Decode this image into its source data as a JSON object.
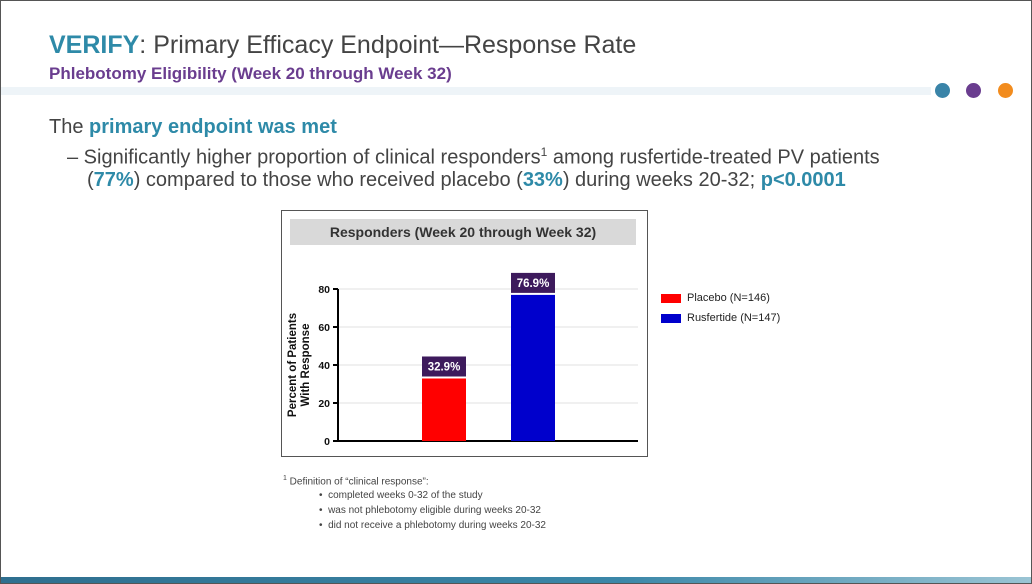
{
  "header": {
    "title_brand": "VERIFY",
    "title_rest": ": Primary Efficacy Endpoint—Response Rate",
    "subtitle": "Phlebotomy Eligibility (Week 20 through Week 32)",
    "dots": [
      "#3a84a8",
      "#6a3d8f",
      "#f28c1e"
    ]
  },
  "body": {
    "b1_pre": "The ",
    "b1_hl": "primary endpoint was met",
    "s1_a": "– Significantly higher proportion of clinical responders",
    "s1_sup": "1",
    "s1_b": " among rusfertide-treated PV patients",
    "s2_a": "(",
    "s2_hl1": "77%",
    "s2_b": ") compared to those who received placebo (",
    "s2_hl2": "33%",
    "s2_c": ") during weeks 20-32; ",
    "s2_hl3": "p<0.0001"
  },
  "chart_data": {
    "type": "bar",
    "title": "Responders (Week 20 through Week 32)",
    "ylabel_line1": "Percent of Patients",
    "ylabel_line2": "With Response",
    "xlabel": "",
    "ylim": [
      0,
      80
    ],
    "yticks": [
      0,
      20,
      40,
      60,
      80
    ],
    "grid": true,
    "legend_position": "right",
    "series": [
      {
        "name": "Placebo (N=146)",
        "value": 32.9,
        "label": "32.9%",
        "color": "#ff0000"
      },
      {
        "name": "Rusfertide (N=147)",
        "value": 76.9,
        "label": "76.9%",
        "color": "#0000cc"
      }
    ],
    "label_bg": "#3d1a5c"
  },
  "footnote": {
    "sup": "1",
    "title": " Definition of “clinical response”:",
    "items": [
      "completed weeks 0-32 of the study",
      "was not phlebotomy eligible during weeks 20-32",
      "did not receive a phlebotomy during weeks 20-32"
    ]
  }
}
